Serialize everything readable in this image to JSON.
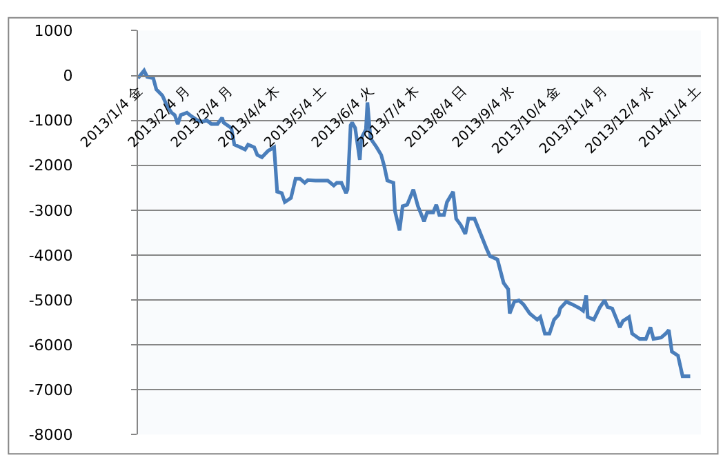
{
  "chart_data": {
    "type": "line",
    "x": [
      "2013-01-04",
      "2013-01-08",
      "2013-01-10",
      "2013-01-14",
      "2013-01-16",
      "2013-01-20",
      "2013-01-23",
      "2013-01-26",
      "2013-01-28",
      "2013-01-30",
      "2013-02-01",
      "2013-02-05",
      "2013-02-08",
      "2013-02-12",
      "2013-02-15",
      "2013-02-18",
      "2013-02-21",
      "2013-02-25",
      "2013-02-28",
      "2013-03-01",
      "2013-03-06",
      "2013-03-08",
      "2013-03-12",
      "2013-03-15",
      "2013-03-17",
      "2013-03-21",
      "2013-03-23",
      "2013-03-26",
      "2013-03-30",
      "2013-04-03",
      "2013-04-05",
      "2013-04-08",
      "2013-04-10",
      "2013-04-14",
      "2013-04-17",
      "2013-04-20",
      "2013-04-23",
      "2013-04-25",
      "2013-04-30",
      "2013-05-04",
      "2013-05-08",
      "2013-05-12",
      "2013-05-14",
      "2013-05-17",
      "2013-05-20",
      "2013-05-21",
      "2013-05-23",
      "2013-05-24",
      "2013-05-26",
      "2013-05-29",
      "2013-05-30",
      "2013-06-02",
      "2013-06-03",
      "2013-06-05",
      "2013-06-09",
      "2013-06-12",
      "2013-06-14",
      "2013-06-16",
      "2013-06-20",
      "2013-06-21",
      "2013-06-24",
      "2013-06-26",
      "2013-06-29",
      "2013-07-03",
      "2013-07-06",
      "2013-07-10",
      "2013-07-12",
      "2013-07-16",
      "2013-07-18",
      "2013-07-20",
      "2013-07-23",
      "2013-07-25",
      "2013-07-29",
      "2013-07-31",
      "2013-08-03",
      "2013-08-06",
      "2013-08-08",
      "2013-08-12",
      "2013-08-16",
      "2013-08-20",
      "2013-08-22",
      "2013-08-27",
      "2013-08-31",
      "2013-09-03",
      "2013-09-04",
      "2013-09-07",
      "2013-09-10",
      "2013-09-13",
      "2013-09-17",
      "2013-09-22",
      "2013-09-24",
      "2013-09-27",
      "2013-09-30",
      "2013-10-03",
      "2013-10-06",
      "2013-10-07",
      "2013-10-11",
      "2013-10-15",
      "2013-10-20",
      "2013-10-22",
      "2013-10-24",
      "2013-10-25",
      "2013-10-29",
      "2013-11-02",
      "2013-11-05",
      "2013-11-07",
      "2013-11-10",
      "2013-11-15",
      "2013-11-17",
      "2013-11-21",
      "2013-11-23",
      "2013-11-28",
      "2013-12-02",
      "2013-12-05",
      "2013-12-07",
      "2013-12-12",
      "2013-12-15",
      "2013-12-17",
      "2013-12-19",
      "2013-12-23",
      "2013-12-26",
      "2013-12-31"
    ],
    "series": [
      {
        "color": "#4a7ebb",
        "values": [
          -60,
          110,
          -30,
          -60,
          -310,
          -450,
          -680,
          -830,
          -880,
          -1080,
          -880,
          -830,
          -910,
          -1000,
          -1030,
          -1000,
          -1080,
          -1080,
          -940,
          -1050,
          -1170,
          -1540,
          -1600,
          -1650,
          -1540,
          -1600,
          -1770,
          -1820,
          -1680,
          -1600,
          -2590,
          -2620,
          -2820,
          -2730,
          -2300,
          -2300,
          -2390,
          -2330,
          -2340,
          -2340,
          -2340,
          -2450,
          -2390,
          -2390,
          -2620,
          -2540,
          -1110,
          -1050,
          -1170,
          -1880,
          -1400,
          -1200,
          -600,
          -1400,
          -1600,
          -1770,
          -2020,
          -2340,
          -2390,
          -3020,
          -3450,
          -2910,
          -2880,
          -2540,
          -2910,
          -3250,
          -3050,
          -3050,
          -2880,
          -3110,
          -3110,
          -2820,
          -2590,
          -3190,
          -3330,
          -3530,
          -3190,
          -3190,
          -3530,
          -3870,
          -4020,
          -4100,
          -4620,
          -4760,
          -5300,
          -5040,
          -5010,
          -5100,
          -5300,
          -5440,
          -5380,
          -5750,
          -5750,
          -5440,
          -5330,
          -5190,
          -5040,
          -5100,
          -5190,
          -5240,
          -4900,
          -5380,
          -5440,
          -5160,
          -5010,
          -5160,
          -5190,
          -5610,
          -5470,
          -5380,
          -5750,
          -5870,
          -5870,
          -5610,
          -5870,
          -5840,
          -5750,
          -5670,
          -6150,
          -6240,
          -6700,
          -6700
        ]
      }
    ],
    "xlim": [
      "2013-01-04",
      "2014-01-07"
    ],
    "xticks": [
      {
        "value": "2013-01-04",
        "label": "2013/1/4 金"
      },
      {
        "value": "2013-02-04",
        "label": "2013/2/4 月"
      },
      {
        "value": "2013-03-04",
        "label": "2013/3/4 月"
      },
      {
        "value": "2013-04-04",
        "label": "2013/4/4 木"
      },
      {
        "value": "2013-05-04",
        "label": "2013/5/4 土"
      },
      {
        "value": "2013-06-04",
        "label": "2013/6/4 火"
      },
      {
        "value": "2013-07-04",
        "label": "2013/7/4 木"
      },
      {
        "value": "2013-08-04",
        "label": "2013/8/4 日"
      },
      {
        "value": "2013-09-04",
        "label": "2013/9/4 水"
      },
      {
        "value": "2013-10-04",
        "label": "2013/10/4 金"
      },
      {
        "value": "2013-11-04",
        "label": "2013/11/4 月"
      },
      {
        "value": "2013-12-04",
        "label": "2013/12/4 水"
      },
      {
        "value": "2014-01-04",
        "label": "2014/1/4 土"
      }
    ],
    "ylim": [
      -8000,
      1000
    ],
    "yticks": [
      -8000,
      -7000,
      -6000,
      -5000,
      -4000,
      -3000,
      -2000,
      -1000,
      0,
      1000
    ],
    "grid": "y",
    "marker": "none",
    "line_style": "solid"
  }
}
